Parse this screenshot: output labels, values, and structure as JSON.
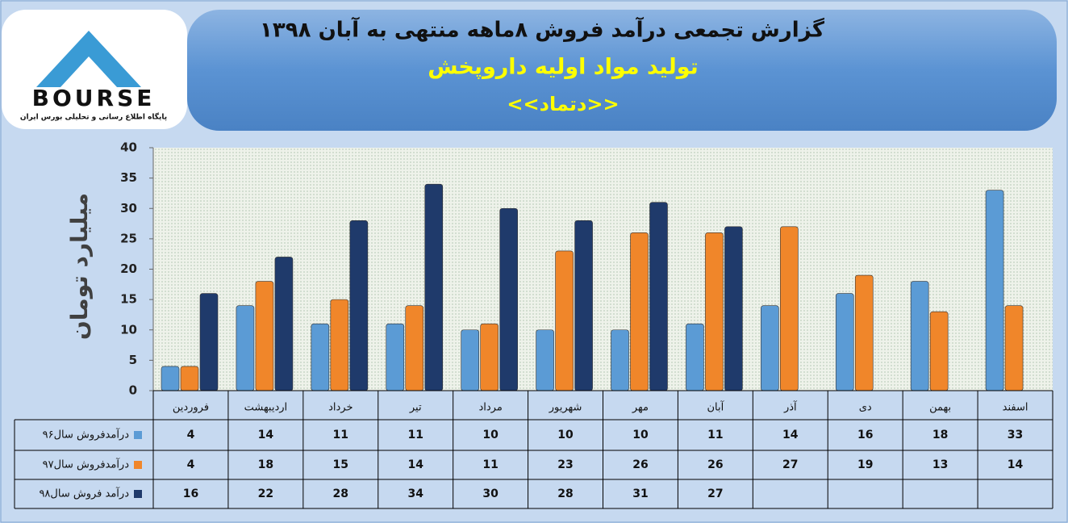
{
  "logo": {
    "name": "BOURSE",
    "tagline": "پایگاه اطلاع رسانی و تحلیلی بورس ایران"
  },
  "chart_data": {
    "type": "bar",
    "title": "گزارش تجمعی درآمد فروش ۸ماهه منتهی به آبان ۱۳۹۸",
    "subtitle": "تولید مواد اولیه داروپخش",
    "subtitle2": "<<دتماد>>",
    "y_label": "میلیارد تومان",
    "categories": [
      "فروردین",
      "اردیبهشت",
      "خرداد",
      "تیر",
      "مرداد",
      "شهریور",
      "مهر",
      "آبان",
      "آذر",
      "دی",
      "بهمن",
      "اسفند"
    ],
    "series": [
      {
        "name": "درآمدفروش سال۹۶",
        "color": "#5b9bd5",
        "values": [
          4,
          14,
          11,
          11,
          10,
          10,
          10,
          11,
          14,
          16,
          18,
          33
        ]
      },
      {
        "name": "درآمدفروش سال۹۷",
        "color": "#f0862a",
        "values": [
          4,
          18,
          15,
          14,
          11,
          23,
          26,
          26,
          27,
          19,
          13,
          14
        ]
      },
      {
        "name": "درآمد فروش سال۹۸",
        "color": "#1f3a6b",
        "values": [
          16,
          22,
          28,
          34,
          30,
          28,
          31,
          27,
          null,
          null,
          null,
          null
        ]
      }
    ],
    "ylim": [
      0,
      40
    ],
    "yticks": [
      0,
      5,
      10,
      15,
      20,
      25,
      30,
      35,
      40
    ],
    "grid": false,
    "data_table": true
  }
}
